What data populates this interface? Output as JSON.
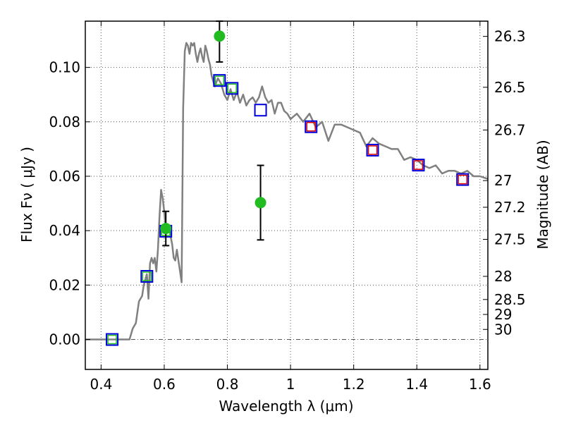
{
  "chart_data": {
    "type": "scatter",
    "xlabel": "Wavelength  λ (μm)",
    "ylabel": "Flux  Fν  ( μJy )",
    "y2label": "Magnitude (AB)",
    "xlim": [
      0.35,
      1.625
    ],
    "ylim": [
      -0.011,
      0.117
    ],
    "grid": true,
    "x_ticks": [
      0.4,
      0.6,
      0.8,
      1.0,
      1.2,
      1.4,
      1.6
    ],
    "x_tick_labels": [
      "0.4",
      "0.6",
      "0.8",
      "1",
      "1.2",
      "1.4",
      "1.6"
    ],
    "y_ticks": [
      0.0,
      0.02,
      0.04,
      0.06,
      0.08,
      0.1
    ],
    "y_tick_labels": [
      "0.00",
      "0.02",
      "0.04",
      "0.06",
      "0.08",
      "0.10"
    ],
    "mag_ticks": [
      {
        "label": "26.3",
        "flux": 0.1114
      },
      {
        "label": "26.5",
        "flux": 0.0927
      },
      {
        "label": "26.7",
        "flux": 0.077
      },
      {
        "label": "27",
        "flux": 0.0584
      },
      {
        "label": "27.2",
        "flux": 0.0486
      },
      {
        "label": "27.5",
        "flux": 0.0368
      },
      {
        "label": "28",
        "flux": 0.0232
      },
      {
        "label": "28.5",
        "flux": 0.0147
      },
      {
        "label": "29",
        "flux": 0.0092
      },
      {
        "label": "30",
        "flux": 0.0037
      }
    ],
    "colors": {
      "model": "#808080",
      "observed": "#22bb22",
      "model_box": "#0000dd",
      "inner_green": "#22bb22",
      "inner_red": "#dd0000",
      "grid": "#555555"
    },
    "model_spectrum": {
      "x": [
        0.35,
        0.49,
        0.5,
        0.51,
        0.52,
        0.53,
        0.535,
        0.54,
        0.545,
        0.55,
        0.555,
        0.56,
        0.565,
        0.57,
        0.575,
        0.58,
        0.585,
        0.59,
        0.595,
        0.6,
        0.605,
        0.61,
        0.615,
        0.62,
        0.625,
        0.63,
        0.635,
        0.64,
        0.645,
        0.65,
        0.655,
        0.66,
        0.665,
        0.67,
        0.675,
        0.68,
        0.685,
        0.69,
        0.695,
        0.7,
        0.705,
        0.71,
        0.715,
        0.72,
        0.725,
        0.73,
        0.735,
        0.74,
        0.745,
        0.75,
        0.76,
        0.77,
        0.78,
        0.79,
        0.8,
        0.81,
        0.82,
        0.83,
        0.84,
        0.85,
        0.86,
        0.87,
        0.88,
        0.89,
        0.9,
        0.91,
        0.92,
        0.93,
        0.94,
        0.95,
        0.96,
        0.97,
        0.98,
        0.99,
        1.0,
        1.02,
        1.04,
        1.06,
        1.08,
        1.1,
        1.12,
        1.14,
        1.16,
        1.18,
        1.2,
        1.22,
        1.24,
        1.26,
        1.28,
        1.3,
        1.32,
        1.34,
        1.36,
        1.38,
        1.4,
        1.42,
        1.44,
        1.46,
        1.48,
        1.5,
        1.52,
        1.54,
        1.56,
        1.58,
        1.6,
        1.625
      ],
      "y": [
        0.0,
        0.0,
        0.004,
        0.006,
        0.014,
        0.016,
        0.02,
        0.022,
        0.024,
        0.015,
        0.028,
        0.03,
        0.028,
        0.03,
        0.025,
        0.033,
        0.045,
        0.055,
        0.052,
        0.047,
        0.04,
        0.04,
        0.042,
        0.038,
        0.035,
        0.03,
        0.029,
        0.033,
        0.029,
        0.025,
        0.021,
        0.085,
        0.106,
        0.109,
        0.108,
        0.105,
        0.109,
        0.108,
        0.109,
        0.105,
        0.102,
        0.105,
        0.107,
        0.104,
        0.102,
        0.108,
        0.106,
        0.103,
        0.101,
        0.097,
        0.093,
        0.096,
        0.094,
        0.09,
        0.088,
        0.092,
        0.088,
        0.091,
        0.087,
        0.09,
        0.086,
        0.088,
        0.089,
        0.087,
        0.089,
        0.093,
        0.089,
        0.087,
        0.088,
        0.083,
        0.087,
        0.087,
        0.084,
        0.083,
        0.081,
        0.083,
        0.08,
        0.083,
        0.078,
        0.08,
        0.073,
        0.079,
        0.079,
        0.078,
        0.077,
        0.076,
        0.071,
        0.074,
        0.072,
        0.071,
        0.07,
        0.07,
        0.066,
        0.067,
        0.066,
        0.064,
        0.063,
        0.064,
        0.061,
        0.062,
        0.062,
        0.061,
        0.062,
        0.06,
        0.06,
        0.059
      ]
    },
    "observed_points": [
      {
        "x": 0.605,
        "y": 0.0408,
        "yerr": 0.0063
      },
      {
        "x": 0.775,
        "y": 0.1115,
        "yerr": 0.0095
      },
      {
        "x": 0.905,
        "y": 0.0503,
        "yerr": 0.0137
      }
    ],
    "model_boxes_green": [
      {
        "x": 0.435,
        "y": 0.0
      },
      {
        "x": 0.545,
        "y": 0.0232
      },
      {
        "x": 0.605,
        "y": 0.0398
      },
      {
        "x": 0.775,
        "y": 0.0952
      },
      {
        "x": 0.815,
        "y": 0.0923
      }
    ],
    "model_boxes_red": [
      {
        "x": 0.905,
        "y": 0.0843
      },
      {
        "x": 1.065,
        "y": 0.0782
      },
      {
        "x": 1.26,
        "y": 0.0696
      },
      {
        "x": 1.405,
        "y": 0.0641
      },
      {
        "x": 1.545,
        "y": 0.0588
      }
    ],
    "red_inner_boxes": [
      1,
      2,
      3,
      4
    ]
  }
}
